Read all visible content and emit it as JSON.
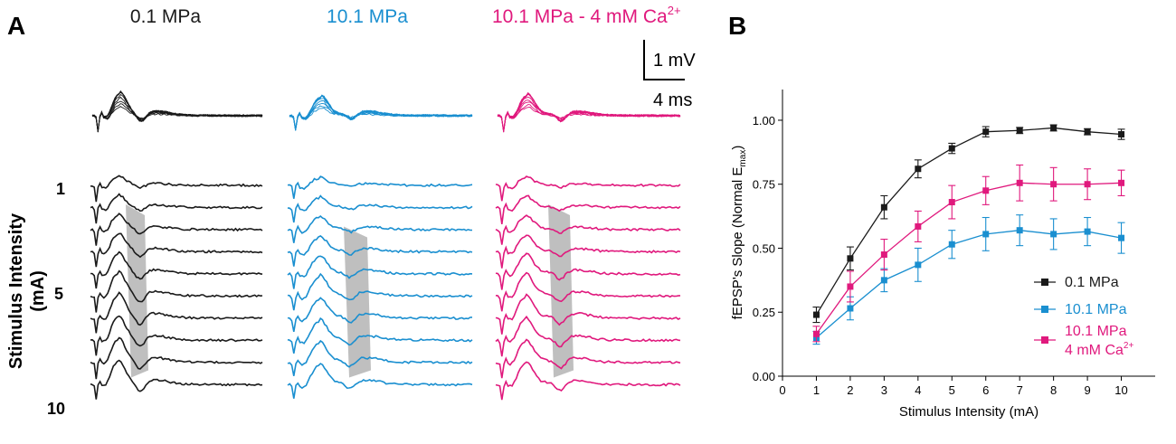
{
  "colors": {
    "black": "#1a1a1a",
    "blue": "#1a8fd0",
    "magenta": "#e0197d",
    "shade": "#b4b4b4"
  },
  "panel_a": {
    "label": "A",
    "conditions": [
      {
        "id": "ctrl",
        "label": "0.1 MPa",
        "color": "#1a1a1a"
      },
      {
        "id": "hp",
        "label": "10.1 MPa",
        "color": "#1a8fd0"
      },
      {
        "id": "ca",
        "label": "10.1 MPa - 4 mM Ca",
        "superscript": "2+",
        "color": "#e0197d"
      }
    ],
    "scalebar": {
      "voltage": "1 mV",
      "time": "4 ms"
    },
    "y_title_line1": "Stimulus Intensity",
    "y_title_line2": "(mA)",
    "row_labels": [
      "1",
      "5",
      "10"
    ]
  },
  "panel_b": {
    "label": "B"
  },
  "chart_data": {
    "type": "line",
    "xlabel": "Stimulus Intensity (mA)",
    "ylabel_pre": "fEPSP's Slope (Normal E",
    "ylabel_sub": "max",
    "ylabel_post": ")",
    "x": [
      1,
      2,
      3,
      4,
      5,
      6,
      7,
      8,
      9,
      10
    ],
    "xlim": [
      0,
      11
    ],
    "ylim": [
      0,
      1.12
    ],
    "xticks": [
      "0",
      "1",
      "2",
      "3",
      "4",
      "5",
      "6",
      "7",
      "8",
      "9",
      "10"
    ],
    "yticks": [
      "0.00",
      "0.25",
      "0.50",
      "0.75",
      "1.00"
    ],
    "legend_position": "bottom-right",
    "series": [
      {
        "name": "0.1 MPa",
        "color": "#1a1a1a",
        "values": [
          0.24,
          0.46,
          0.66,
          0.81,
          0.89,
          0.955,
          0.96,
          0.97,
          0.955,
          0.945
        ],
        "errors": [
          0.03,
          0.045,
          0.045,
          0.035,
          0.02,
          0.02,
          0.012,
          0.012,
          0.012,
          0.02
        ]
      },
      {
        "name": "10.1 MPa",
        "color": "#1a8fd0",
        "values": [
          0.15,
          0.265,
          0.375,
          0.435,
          0.515,
          0.555,
          0.57,
          0.555,
          0.565,
          0.54
        ],
        "errors": [
          0.025,
          0.045,
          0.045,
          0.065,
          0.055,
          0.065,
          0.06,
          0.06,
          0.055,
          0.06
        ]
      },
      {
        "name": "10.1 MPa",
        "name_line2": "4 mM Ca",
        "name_sup": "2+",
        "color": "#e0197d",
        "values": [
          0.165,
          0.35,
          0.475,
          0.585,
          0.68,
          0.725,
          0.755,
          0.75,
          0.75,
          0.755
        ],
        "errors": [
          0.03,
          0.06,
          0.06,
          0.06,
          0.065,
          0.055,
          0.07,
          0.065,
          0.06,
          0.05
        ]
      }
    ]
  }
}
